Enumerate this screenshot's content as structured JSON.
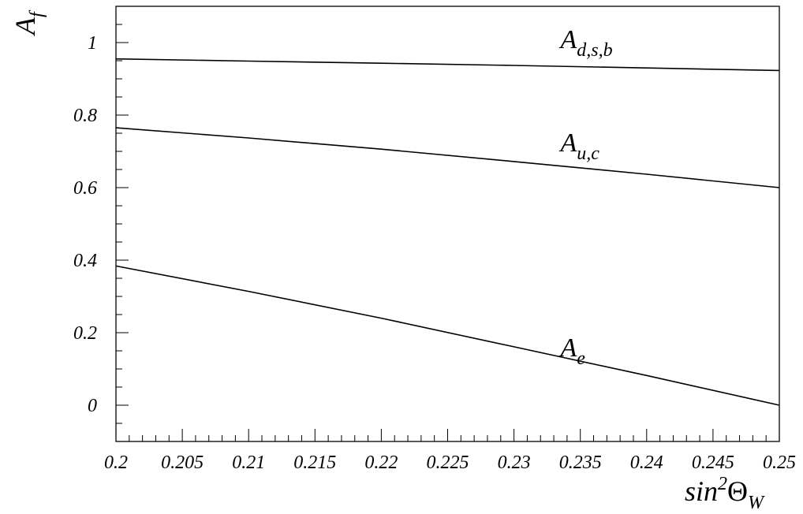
{
  "chart_data": {
    "type": "line",
    "title": "",
    "xlabel": {
      "main": "sin",
      "sup": "2",
      "greek": "Θ",
      "sub": "W"
    },
    "ylabel": {
      "main": "A",
      "sub": "f"
    },
    "xlim": [
      0.2,
      0.25
    ],
    "ylim": [
      -0.1,
      1.1
    ],
    "x_ticks": [
      {
        "value": 0.2,
        "label": "0.2"
      },
      {
        "value": 0.205,
        "label": "0.205"
      },
      {
        "value": 0.21,
        "label": "0.21"
      },
      {
        "value": 0.215,
        "label": "0.215"
      },
      {
        "value": 0.22,
        "label": "0.22"
      },
      {
        "value": 0.225,
        "label": "0.225"
      },
      {
        "value": 0.23,
        "label": "0.23"
      },
      {
        "value": 0.235,
        "label": "0.235"
      },
      {
        "value": 0.24,
        "label": "0.24"
      },
      {
        "value": 0.245,
        "label": "0.245"
      },
      {
        "value": 0.25,
        "label": "0.25"
      }
    ],
    "y_ticks": [
      {
        "value": 0,
        "label": "0"
      },
      {
        "value": 0.2,
        "label": "0.2"
      },
      {
        "value": 0.4,
        "label": "0.4"
      },
      {
        "value": 0.6,
        "label": "0.6"
      },
      {
        "value": 0.8,
        "label": "0.8"
      },
      {
        "value": 1,
        "label": "1"
      }
    ],
    "x_minor_step": 0.001,
    "y_minor_step": 0.05,
    "grid": false,
    "series": [
      {
        "name": "A_{d,s,b}",
        "label": {
          "main": "A",
          "sub": "d,s,b"
        },
        "label_anchor": {
          "x": 0.2335,
          "y": 0.985
        },
        "x": [
          0.2,
          0.21,
          0.22,
          0.23,
          0.24,
          0.25
        ],
        "y": [
          0.955,
          0.949,
          0.943,
          0.937,
          0.93,
          0.923
        ]
      },
      {
        "name": "A_{u,c}",
        "label": {
          "main": "A",
          "sub": "u,c"
        },
        "label_anchor": {
          "x": 0.2335,
          "y": 0.7
        },
        "x": [
          0.2,
          0.21,
          0.22,
          0.23,
          0.24,
          0.25
        ],
        "y": [
          0.765,
          0.737,
          0.706,
          0.672,
          0.637,
          0.6
        ]
      },
      {
        "name": "A_e",
        "label": {
          "main": "A",
          "sub": "e"
        },
        "label_anchor": {
          "x": 0.2335,
          "y": 0.135
        },
        "x": [
          0.2,
          0.21,
          0.22,
          0.23,
          0.24,
          0.25
        ],
        "y": [
          0.384,
          0.314,
          0.24,
          0.161,
          0.082,
          0.0
        ]
      }
    ]
  }
}
